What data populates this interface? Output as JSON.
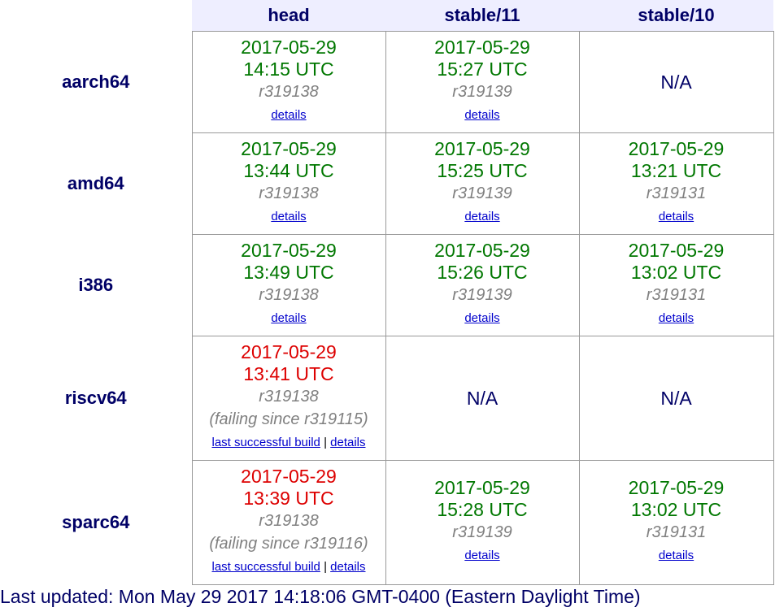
{
  "columns": [
    "head",
    "stable/11",
    "stable/10"
  ],
  "rows": [
    {
      "arch": "aarch64",
      "cells": [
        {
          "status": "ok",
          "date": "2017-05-29",
          "time": "14:15 UTC",
          "rev": "r319138",
          "details": "details"
        },
        {
          "status": "ok",
          "date": "2017-05-29",
          "time": "15:27 UTC",
          "rev": "r319139",
          "details": "details"
        },
        {
          "status": "na",
          "text": "N/A"
        }
      ]
    },
    {
      "arch": "amd64",
      "cells": [
        {
          "status": "ok",
          "date": "2017-05-29",
          "time": "13:44 UTC",
          "rev": "r319138",
          "details": "details"
        },
        {
          "status": "ok",
          "date": "2017-05-29",
          "time": "15:25 UTC",
          "rev": "r319139",
          "details": "details"
        },
        {
          "status": "ok",
          "date": "2017-05-29",
          "time": "13:21 UTC",
          "rev": "r319131",
          "details": "details"
        }
      ]
    },
    {
      "arch": "i386",
      "cells": [
        {
          "status": "ok",
          "date": "2017-05-29",
          "time": "13:49 UTC",
          "rev": "r319138",
          "details": "details"
        },
        {
          "status": "ok",
          "date": "2017-05-29",
          "time": "15:26 UTC",
          "rev": "r319139",
          "details": "details"
        },
        {
          "status": "ok",
          "date": "2017-05-29",
          "time": "13:02 UTC",
          "rev": "r319131",
          "details": "details"
        }
      ]
    },
    {
      "arch": "riscv64",
      "cells": [
        {
          "status": "fail",
          "date": "2017-05-29",
          "time": "13:41 UTC",
          "rev": "r319138",
          "failing": "(failing since r319115)",
          "last_success": "last successful build",
          "separator": "|",
          "details": "details"
        },
        {
          "status": "na",
          "text": "N/A"
        },
        {
          "status": "na",
          "text": "N/A"
        }
      ]
    },
    {
      "arch": "sparc64",
      "cells": [
        {
          "status": "fail",
          "date": "2017-05-29",
          "time": "13:39 UTC",
          "rev": "r319138",
          "failing": "(failing since r319116)",
          "last_success": "last successful build",
          "separator": "|",
          "details": "details"
        },
        {
          "status": "ok",
          "date": "2017-05-29",
          "time": "15:28 UTC",
          "rev": "r319139",
          "details": "details"
        },
        {
          "status": "ok",
          "date": "2017-05-29",
          "time": "13:02 UTC",
          "rev": "r319131",
          "details": "details"
        }
      ]
    }
  ],
  "footer": {
    "last_updated": "Last updated: Mon May 29 2017 14:18:06 GMT-0400 (Eastern Daylight Time)"
  },
  "colors": {
    "ok": "#007700",
    "fail": "#dd0000",
    "header_bg": "#eeeeff",
    "header_text": "#000066"
  }
}
